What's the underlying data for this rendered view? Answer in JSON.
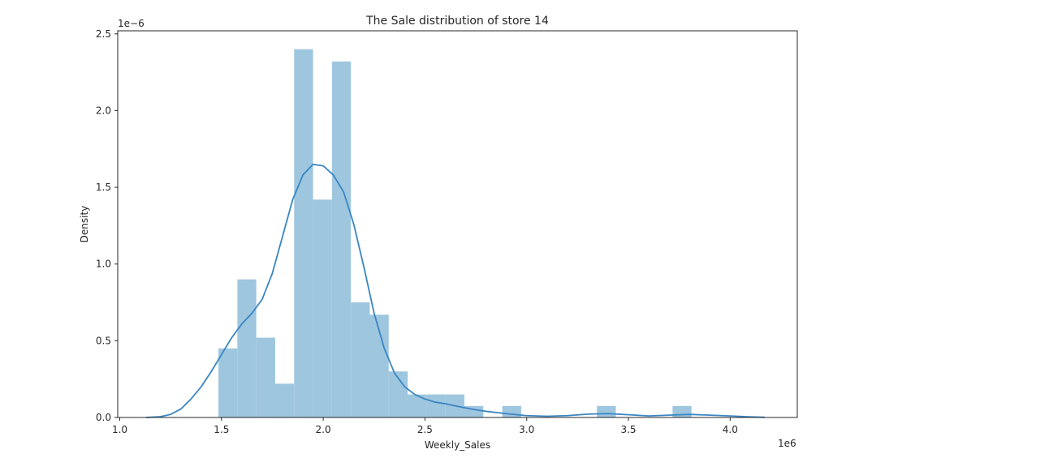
{
  "chart_data": {
    "type": "histogram",
    "title": "The Sale distribution of store 14",
    "xlabel": "Weekly_Sales",
    "ylabel": "Density",
    "x_scale_label": "1e6",
    "y_scale_label": "1e−6",
    "x_unit_multiplier": 1000000,
    "y_unit_multiplier": 1e-06,
    "xlim": [
      0.99,
      4.33
    ],
    "ylim": [
      0,
      2.52
    ],
    "xticks": [
      1.0,
      1.5,
      2.0,
      2.5,
      3.0,
      3.5,
      4.0
    ],
    "xtick_labels": [
      "1.0",
      "1.5",
      "2.0",
      "2.5",
      "3.0",
      "3.5",
      "4.0"
    ],
    "yticks": [
      0.0,
      0.5,
      1.0,
      1.5,
      2.0,
      2.5
    ],
    "ytick_labels": [
      "0.0",
      "0.5",
      "1.0",
      "1.5",
      "2.0",
      "2.5"
    ],
    "grid": false,
    "colors": {
      "bars": "#9ec6df",
      "kde": "#3a86c2",
      "axes": "#262626"
    },
    "bins": [
      {
        "x0": 1.485,
        "x1": 1.578,
        "density": 0.45
      },
      {
        "x0": 1.578,
        "x1": 1.671,
        "density": 0.9
      },
      {
        "x0": 1.671,
        "x1": 1.764,
        "density": 0.52
      },
      {
        "x0": 1.764,
        "x1": 1.857,
        "density": 0.22
      },
      {
        "x0": 1.857,
        "x1": 1.95,
        "density": 2.4
      },
      {
        "x0": 1.95,
        "x1": 2.043,
        "density": 1.42
      },
      {
        "x0": 2.043,
        "x1": 2.136,
        "density": 2.32
      },
      {
        "x0": 2.136,
        "x1": 2.229,
        "density": 0.75
      },
      {
        "x0": 2.229,
        "x1": 2.322,
        "density": 0.67
      },
      {
        "x0": 2.322,
        "x1": 2.415,
        "density": 0.3
      },
      {
        "x0": 2.415,
        "x1": 2.508,
        "density": 0.15
      },
      {
        "x0": 2.508,
        "x1": 2.601,
        "density": 0.15
      },
      {
        "x0": 2.601,
        "x1": 2.694,
        "density": 0.15
      },
      {
        "x0": 2.694,
        "x1": 2.787,
        "density": 0.075
      },
      {
        "x0": 2.787,
        "x1": 2.88,
        "density": 0
      },
      {
        "x0": 2.88,
        "x1": 2.973,
        "density": 0.075
      },
      {
        "x0": 2.973,
        "x1": 3.066,
        "density": 0
      },
      {
        "x0": 3.066,
        "x1": 3.159,
        "density": 0
      },
      {
        "x0": 3.159,
        "x1": 3.252,
        "density": 0
      },
      {
        "x0": 3.252,
        "x1": 3.345,
        "density": 0
      },
      {
        "x0": 3.345,
        "x1": 3.438,
        "density": 0.075
      },
      {
        "x0": 3.438,
        "x1": 3.531,
        "density": 0
      },
      {
        "x0": 3.531,
        "x1": 3.624,
        "density": 0
      },
      {
        "x0": 3.624,
        "x1": 3.717,
        "density": 0
      },
      {
        "x0": 3.717,
        "x1": 3.81,
        "density": 0.075
      }
    ],
    "kde": {
      "x": [
        1.13,
        1.2,
        1.25,
        1.3,
        1.35,
        1.4,
        1.45,
        1.5,
        1.55,
        1.6,
        1.65,
        1.7,
        1.75,
        1.8,
        1.85,
        1.9,
        1.95,
        2.0,
        2.05,
        2.1,
        2.15,
        2.2,
        2.25,
        2.3,
        2.35,
        2.4,
        2.45,
        2.5,
        2.55,
        2.6,
        2.65,
        2.7,
        2.75,
        2.8,
        2.9,
        3.0,
        3.1,
        3.2,
        3.3,
        3.4,
        3.5,
        3.6,
        3.7,
        3.8,
        3.9,
        4.0,
        4.1,
        4.17
      ],
      "y": [
        0.0,
        0.005,
        0.02,
        0.055,
        0.12,
        0.2,
        0.3,
        0.41,
        0.52,
        0.61,
        0.68,
        0.77,
        0.94,
        1.18,
        1.42,
        1.58,
        1.65,
        1.64,
        1.58,
        1.47,
        1.26,
        0.98,
        0.68,
        0.45,
        0.29,
        0.2,
        0.15,
        0.12,
        0.1,
        0.09,
        0.075,
        0.062,
        0.05,
        0.04,
        0.025,
        0.012,
        0.008,
        0.012,
        0.022,
        0.025,
        0.018,
        0.01,
        0.015,
        0.02,
        0.015,
        0.01,
        0.004,
        0.001
      ]
    }
  }
}
